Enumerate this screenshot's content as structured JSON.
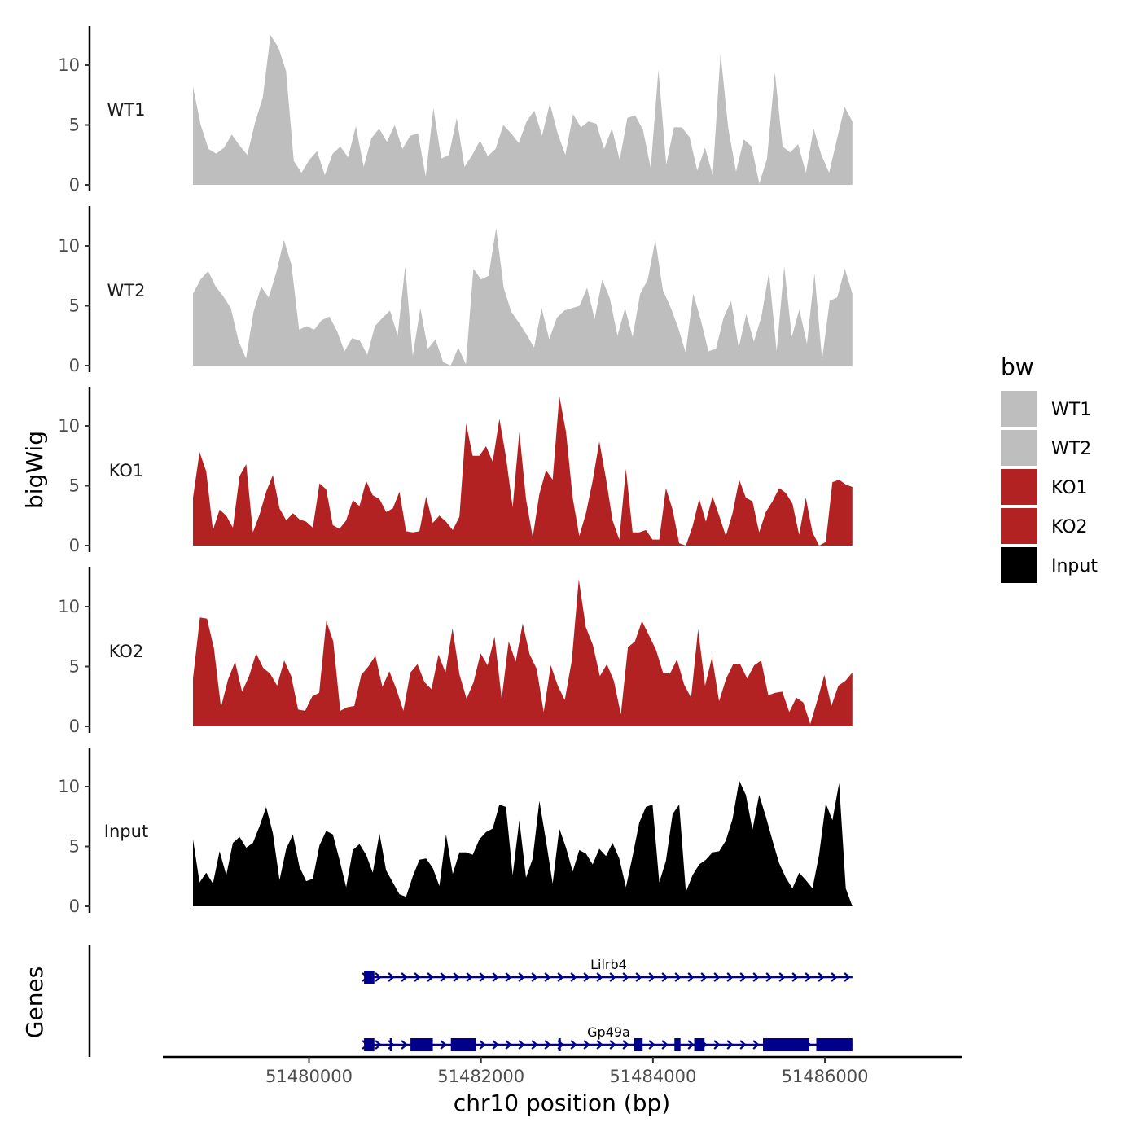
{
  "chart_data": {
    "type": "area",
    "xlabel": "chr10 position (bp)",
    "ylabel": "bigWig",
    "gene_panel_label": "Genes",
    "xlim": [
      51478300,
      51487600
    ],
    "data_x_range": [
      51478650,
      51486320
    ],
    "x_ticks": [
      51480000,
      51482000,
      51484000,
      51486000
    ],
    "x_tick_labels": [
      "51480000",
      "51482000",
      "51484000",
      "51486000"
    ],
    "ylim": [
      0,
      13.5
    ],
    "y_ticks": [
      0,
      5,
      10
    ],
    "y_tick_labels": [
      "0",
      "5",
      "10"
    ],
    "legend": {
      "title": "bw",
      "position": "right",
      "entries": [
        {
          "label": "WT1",
          "color": "#bebebe"
        },
        {
          "label": "WT2",
          "color": "#bebebe"
        },
        {
          "label": "KO1",
          "color": "#b22222"
        },
        {
          "label": "KO2",
          "color": "#b22222"
        },
        {
          "label": "Input",
          "color": "#000000"
        }
      ]
    },
    "series": [
      {
        "name": "WT1",
        "color": "#bebebe",
        "values": [
          8.2,
          5.0,
          3.0,
          2.6,
          3.1,
          4.2,
          3.3,
          2.5,
          5.2,
          7.3,
          12.5,
          11.5,
          9.5,
          2.0,
          1.0,
          2.1,
          2.8,
          0.8,
          2.6,
          3.2,
          2.3,
          4.9,
          1.5,
          3.9,
          4.7,
          3.6,
          5.0,
          3.0,
          4.1,
          4.3,
          0.7,
          6.4,
          2.2,
          2.5,
          5.6,
          1.5,
          2.5,
          3.7,
          2.4,
          3.0,
          5.0,
          4.3,
          3.5,
          5.3,
          6.2,
          4.1,
          6.8,
          4.3,
          2.5,
          5.9,
          4.8,
          5.3,
          5.1,
          3.0,
          4.7,
          2.1,
          5.6,
          5.8,
          4.6,
          1.4,
          9.6,
          1.7,
          4.8,
          4.8,
          4.0,
          1.2,
          3.1,
          0.8,
          11.0,
          4.7,
          1.1,
          3.8,
          3.2,
          0.1,
          2.2,
          9.4,
          3.2,
          2.7,
          3.4,
          1.0,
          4.7,
          2.5,
          1.0,
          3.8,
          6.5,
          5.3
        ]
      },
      {
        "name": "WT2",
        "color": "#bebebe",
        "values": [
          6.0,
          7.2,
          7.9,
          6.6,
          5.8,
          4.8,
          2.1,
          0.6,
          4.5,
          6.6,
          5.7,
          7.8,
          10.5,
          8.4,
          3.0,
          3.3,
          3.0,
          3.8,
          4.1,
          2.9,
          1.2,
          2.3,
          2.1,
          0.9,
          3.3,
          4.0,
          4.6,
          2.5,
          8.3,
          0.8,
          4.8,
          1.4,
          2.2,
          0.3,
          -0.5,
          1.5,
          0.1,
          8.1,
          7.2,
          7.5,
          11.5,
          6.5,
          4.5,
          3.6,
          2.6,
          1.5,
          4.8,
          2.2,
          4.0,
          4.6,
          4.8,
          5.0,
          6.5,
          3.9,
          7.2,
          5.6,
          2.5,
          4.8,
          2.4,
          6.0,
          7.2,
          10.5,
          6.3,
          4.9,
          3.2,
          1.1,
          6.0,
          3.8,
          1.2,
          1.4,
          4.0,
          5.4,
          1.5,
          4.3,
          2.0,
          4.1,
          7.8,
          1.2,
          8.3,
          2.4,
          4.7,
          1.8,
          7.7,
          0.5,
          5.4,
          5.7,
          8.1,
          6.0
        ]
      },
      {
        "name": "KO1",
        "color": "#b22222",
        "values": [
          4.0,
          7.8,
          6.2,
          1.3,
          3.0,
          2.5,
          1.5,
          5.8,
          6.8,
          1.1,
          2.6,
          4.5,
          5.9,
          3.1,
          2.1,
          2.7,
          2.2,
          2.0,
          1.5,
          5.2,
          4.7,
          1.7,
          1.4,
          2.1,
          3.8,
          3.3,
          5.4,
          4.2,
          3.9,
          2.8,
          3.1,
          4.5,
          1.2,
          1.1,
          1.2,
          4.1,
          1.9,
          2.5,
          2.0,
          1.3,
          2.4,
          10.2,
          7.5,
          7.5,
          8.3,
          7.0,
          10.6,
          7.4,
          3.2,
          9.5,
          3.9,
          0.7,
          4.3,
          6.3,
          5.5,
          12.5,
          9.5,
          4.0,
          0.8,
          2.7,
          5.4,
          8.7,
          5.6,
          2.1,
          0.5,
          6.4,
          1.1,
          1.1,
          1.3,
          0.5,
          0.5,
          4.8,
          3.0,
          0.2,
          -0.1,
          1.6,
          3.9,
          2.0,
          4.1,
          2.5,
          0.8,
          2.7,
          5.5,
          4.0,
          3.7,
          1.1,
          2.8,
          3.7,
          4.8,
          4.4,
          3.5,
          0.9,
          4.0,
          1.1,
          -0.3,
          0.3,
          5.3,
          5.5,
          5.1,
          4.9
        ]
      },
      {
        "name": "KO2",
        "color": "#b22222",
        "values": [
          4.0,
          9.1,
          9.0,
          6.5,
          1.6,
          3.9,
          5.4,
          2.9,
          4.2,
          6.1,
          4.9,
          4.4,
          3.4,
          5.5,
          4.2,
          1.4,
          1.3,
          2.5,
          2.8,
          8.8,
          7.1,
          1.3,
          1.6,
          1.7,
          4.3,
          5.0,
          5.9,
          3.3,
          4.6,
          3.1,
          1.3,
          4.5,
          5.2,
          3.7,
          3.1,
          6.0,
          4.5,
          8.2,
          4.3,
          2.3,
          3.7,
          6.1,
          5.1,
          7.5,
          2.3,
          7.1,
          5.4,
          8.6,
          6.0,
          4.8,
          1.2,
          5.1,
          3.4,
          2.2,
          5.5,
          12.3,
          8.3,
          6.8,
          4.2,
          5.2,
          3.8,
          1.0,
          6.6,
          7.1,
          8.8,
          7.6,
          6.4,
          4.5,
          4.4,
          5.6,
          3.5,
          2.4,
          8.1,
          3.4,
          5.8,
          2.1,
          4.0,
          5.2,
          5.2,
          4.0,
          5.1,
          5.5,
          2.6,
          2.8,
          2.9,
          1.2,
          2.4,
          2.0,
          0.2,
          2.2,
          4.3,
          1.7,
          3.4,
          3.8,
          4.5
        ]
      },
      {
        "name": "Input",
        "color": "#000000",
        "values": [
          5.6,
          2.0,
          2.8,
          1.9,
          4.6,
          2.6,
          5.3,
          5.8,
          4.9,
          5.3,
          6.7,
          8.3,
          6.1,
          2.2,
          4.8,
          6.0,
          3.3,
          2.1,
          2.3,
          5.1,
          6.3,
          6.0,
          3.9,
          1.6,
          4.7,
          5.2,
          4.3,
          2.8,
          6.1,
          3.0,
          2.0,
          1.0,
          0.8,
          2.5,
          3.9,
          4.0,
          3.2,
          1.7,
          6.0,
          2.7,
          4.5,
          4.5,
          4.3,
          5.6,
          6.2,
          6.5,
          8.5,
          8.3,
          2.6,
          7.2,
          2.4,
          4.0,
          8.8,
          5.5,
          1.9,
          6.5,
          4.9,
          2.9,
          4.7,
          4.4,
          3.5,
          4.8,
          4.2,
          5.3,
          4.0,
          1.6,
          4.2,
          7.0,
          8.3,
          8.5,
          2.0,
          3.8,
          7.7,
          8.5,
          1.2,
          2.6,
          3.5,
          3.9,
          4.5,
          4.6,
          5.5,
          7.3,
          10.5,
          9.3,
          6.4,
          9.3,
          7.5,
          5.5,
          3.6,
          2.4,
          1.5,
          2.8,
          2.2,
          1.5,
          4.3,
          8.6,
          7.2,
          10.3,
          1.5,
          0.0
        ]
      }
    ],
    "genes": [
      {
        "name": "Lilrb4",
        "strand": "+",
        "start": 51480650,
        "end": 51486320,
        "exons": [
          [
            51480640,
            51480760
          ]
        ]
      },
      {
        "name": "Gp49a",
        "strand": "+",
        "start": 51480650,
        "end": 51486320,
        "exons": [
          [
            51480640,
            51480760
          ],
          [
            51480940,
            51480960
          ],
          [
            51481180,
            51481440
          ],
          [
            51481650,
            51481940
          ],
          [
            51482900,
            51482920
          ],
          [
            51483780,
            51483880
          ],
          [
            51484250,
            51484320
          ],
          [
            51484480,
            51484600
          ],
          [
            51485280,
            51485820
          ],
          [
            51485900,
            51486320
          ]
        ]
      }
    ]
  }
}
